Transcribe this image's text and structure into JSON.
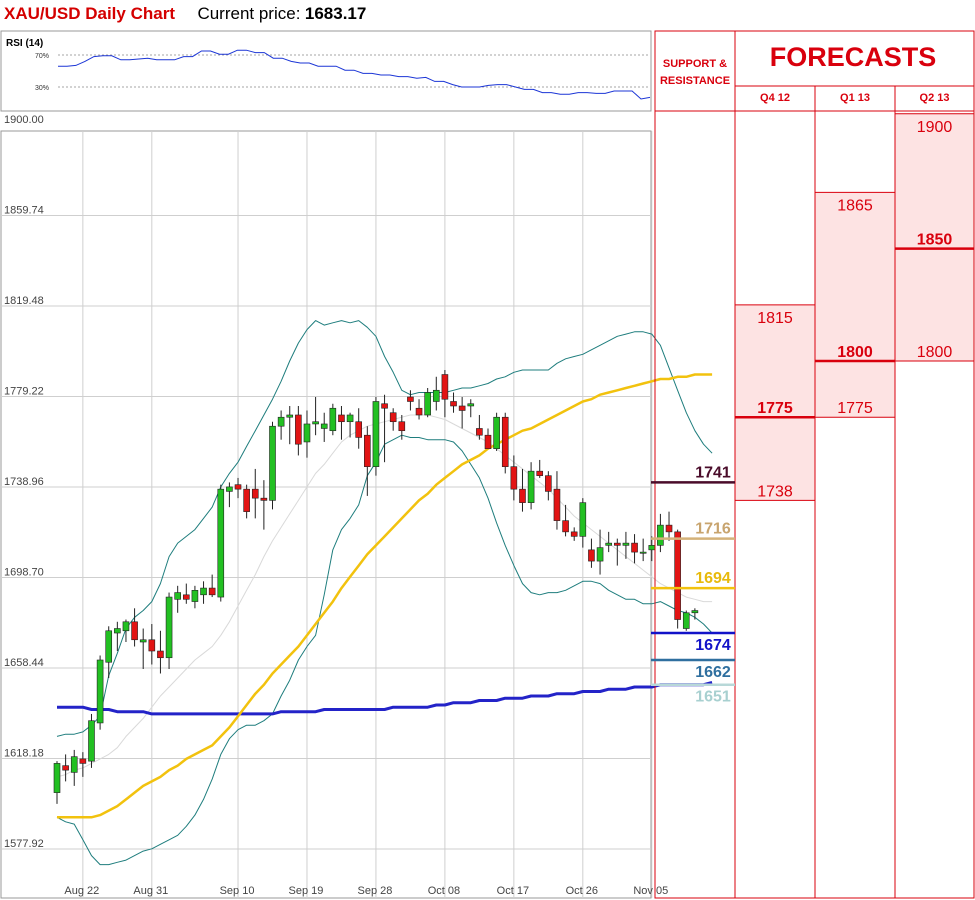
{
  "header": {
    "title": "XAU/USD Daily Chart",
    "current_price_label": "Current price:",
    "current_price_value": "1683.17"
  },
  "colors": {
    "red": "#d40000",
    "panel_red": "#d9000d",
    "fill_pink": "#fde3e3",
    "candle_up": "#22c022",
    "candle_down": "#e21414",
    "bollinger": "#1e7d7d",
    "ma_short": "#d9d9d9",
    "ma_mid": "#f2c20e",
    "ma_long": "#2323c8",
    "rsi_line": "#1b35d6"
  },
  "chart_data": [
    {
      "type": "line",
      "title": "RSI (14)",
      "ylim": [
        0,
        100
      ],
      "y_ticks": [
        "70%",
        "30%"
      ],
      "y_tick_values": [
        70,
        30
      ],
      "series": [
        {
          "values": [
            56,
            56,
            57,
            62,
            68,
            69,
            69,
            64,
            64,
            65,
            66,
            64,
            64,
            64,
            68,
            68,
            75,
            75,
            71,
            71,
            76,
            76,
            73,
            73,
            66,
            66,
            62,
            60,
            60,
            56,
            56,
            56,
            51,
            51,
            47,
            47,
            45,
            45,
            43,
            43,
            41,
            42,
            37,
            37,
            33,
            30,
            30,
            30,
            32,
            33,
            33,
            30,
            27,
            27,
            23,
            23,
            21,
            21,
            23,
            23,
            22,
            22,
            25,
            25,
            25,
            15,
            17
          ]
        }
      ]
    },
    {
      "type": "candlestick",
      "ylim": [
        1570,
        1900
      ],
      "y_ticks": [
        "1900.00",
        "1859.74",
        "1819.48",
        "1779.22",
        "1738.96",
        "1698.70",
        "1658.44",
        "1618.18",
        "1577.92"
      ],
      "y_tick_values": [
        1900.0,
        1859.74,
        1819.48,
        1779.22,
        1738.96,
        1698.7,
        1658.44,
        1618.18,
        1577.92
      ],
      "x_ticks": [
        "Aug 22",
        "Aug 31",
        "Sep 10",
        "Sep 19",
        "Sep 28",
        "Oct 08",
        "Oct 17",
        "Oct 26",
        "Nov 05"
      ],
      "x_tick_index": [
        3,
        11,
        21,
        29,
        37,
        45,
        53,
        61,
        69
      ],
      "candles": [
        [
          1603,
          1617,
          1598,
          1616
        ],
        [
          1615,
          1620,
          1608,
          1613
        ],
        [
          1612,
          1622,
          1606,
          1619
        ],
        [
          1618,
          1621,
          1610,
          1616
        ],
        [
          1617,
          1638,
          1614,
          1635
        ],
        [
          1634,
          1664,
          1631,
          1662
        ],
        [
          1661,
          1677,
          1654,
          1675
        ],
        [
          1674,
          1679,
          1666,
          1676
        ],
        [
          1675,
          1680,
          1670,
          1679
        ],
        [
          1679,
          1685,
          1668,
          1671
        ],
        [
          1670,
          1676,
          1658,
          1671
        ],
        [
          1671,
          1678,
          1660,
          1666
        ],
        [
          1666,
          1675,
          1656,
          1663
        ],
        [
          1663,
          1692,
          1658,
          1690
        ],
        [
          1689,
          1695,
          1683,
          1692
        ],
        [
          1691,
          1696,
          1687,
          1689
        ],
        [
          1688,
          1695,
          1685,
          1693
        ],
        [
          1691,
          1697,
          1687,
          1694
        ],
        [
          1694,
          1700,
          1690,
          1691
        ],
        [
          1690,
          1740,
          1688,
          1738
        ],
        [
          1737,
          1741,
          1730,
          1739
        ],
        [
          1740,
          1743,
          1734,
          1738
        ],
        [
          1738,
          1740,
          1725,
          1728
        ],
        [
          1738,
          1747,
          1725,
          1734
        ],
        [
          1734,
          1742,
          1720,
          1733
        ],
        [
          1733,
          1768,
          1729,
          1766
        ],
        [
          1766,
          1773,
          1760,
          1770
        ],
        [
          1770,
          1775,
          1758,
          1771
        ],
        [
          1771,
          1775,
          1753,
          1758
        ],
        [
          1759,
          1773,
          1752,
          1767
        ],
        [
          1767,
          1779,
          1762,
          1768
        ],
        [
          1765,
          1772,
          1759,
          1767
        ],
        [
          1764,
          1776,
          1762,
          1774
        ],
        [
          1771,
          1775,
          1760,
          1768
        ],
        [
          1768,
          1772,
          1761,
          1771
        ],
        [
          1768,
          1774,
          1756,
          1761
        ],
        [
          1762,
          1766,
          1735,
          1748
        ],
        [
          1748,
          1779,
          1744,
          1777
        ],
        [
          1776,
          1780,
          1750,
          1774
        ],
        [
          1772,
          1774,
          1764,
          1768
        ],
        [
          1768,
          1771,
          1760,
          1764
        ],
        [
          1779,
          1782,
          1773,
          1777
        ],
        [
          1774,
          1778,
          1769,
          1771
        ],
        [
          1771,
          1783,
          1770,
          1781
        ],
        [
          1777,
          1788,
          1773,
          1782
        ],
        [
          1789,
          1791,
          1770,
          1778
        ],
        [
          1777,
          1781,
          1772,
          1775
        ],
        [
          1775,
          1779,
          1765,
          1773
        ],
        [
          1775,
          1778,
          1770,
          1776
        ],
        [
          1765,
          1771,
          1760,
          1762
        ],
        [
          1762,
          1765,
          1756,
          1756
        ],
        [
          1756,
          1772,
          1755,
          1770
        ],
        [
          1770,
          1772,
          1745,
          1748
        ],
        [
          1748,
          1753,
          1733,
          1738
        ],
        [
          1738,
          1747,
          1728,
          1732
        ],
        [
          1732,
          1750,
          1729,
          1746
        ],
        [
          1746,
          1751,
          1743,
          1744
        ],
        [
          1744,
          1746,
          1733,
          1737
        ],
        [
          1738,
          1746,
          1720,
          1724
        ],
        [
          1724,
          1731,
          1717,
          1719
        ],
        [
          1719,
          1721,
          1715,
          1717
        ],
        [
          1717,
          1734,
          1712,
          1732
        ],
        [
          1711,
          1716,
          1703,
          1706
        ],
        [
          1706,
          1720,
          1700,
          1712
        ],
        [
          1713,
          1719,
          1710,
          1714
        ],
        [
          1714,
          1716,
          1704,
          1713
        ],
        [
          1713,
          1719,
          1707,
          1714
        ],
        [
          1714,
          1718,
          1705,
          1710
        ],
        [
          1710,
          1716,
          1706,
          1710
        ],
        [
          1711,
          1717,
          1706,
          1713
        ],
        [
          1713,
          1727,
          1710,
          1722
        ],
        [
          1722,
          1728,
          1715,
          1719
        ],
        [
          1719,
          1720,
          1676,
          1680
        ],
        [
          1676,
          1684,
          1675,
          1683
        ],
        [
          1683,
          1685,
          1680,
          1684
        ]
      ],
      "series": [
        {
          "kind": "bollinger-upper",
          "values": [
            1628,
            1629,
            1629,
            1630,
            1633,
            1637,
            1655,
            1665,
            1676,
            1681,
            1684,
            1688,
            1696,
            1708,
            1714,
            1717,
            1720,
            1725,
            1730,
            1739,
            1745,
            1750,
            1757,
            1764,
            1771,
            1778,
            1786,
            1795,
            1803,
            1809,
            1813,
            1811,
            1812,
            1813,
            1812,
            1813,
            1810,
            1806,
            1797,
            1790,
            1782,
            1780,
            1781,
            1781,
            1781,
            1781,
            1782,
            1783,
            1783,
            1784,
            1785,
            1787,
            1788,
            1790,
            1791,
            1791,
            1791,
            1791,
            1794,
            1796,
            1797,
            1798,
            1800,
            1802,
            1804,
            1806,
            1807,
            1808,
            1808,
            1807,
            1802,
            1792,
            1782,
            1772,
            1764,
            1758,
            1754
          ]
        },
        {
          "kind": "bollinger-lower",
          "values": [
            1592,
            1590,
            1589,
            1582,
            1575,
            1571,
            1571,
            1572,
            1573,
            1575,
            1577,
            1578,
            1580,
            1582,
            1584,
            1588,
            1593,
            1600,
            1609,
            1620,
            1627,
            1631,
            1633,
            1633,
            1635,
            1638,
            1646,
            1653,
            1662,
            1668,
            1673,
            1691,
            1711,
            1720,
            1725,
            1731,
            1744,
            1750,
            1758,
            1760,
            1762,
            1761,
            1761,
            1760,
            1760,
            1760,
            1759,
            1755,
            1749,
            1743,
            1734,
            1723,
            1713,
            1704,
            1696,
            1692,
            1691,
            1692,
            1692,
            1693,
            1695,
            1697,
            1697,
            1696,
            1693,
            1691,
            1689,
            1689,
            1687,
            1687,
            1688,
            1686,
            1684,
            1683,
            1681,
            1678,
            1674
          ]
        },
        {
          "kind": "ma-short",
          "values": [
            1610,
            1611,
            1613,
            1614,
            1616,
            1618,
            1620,
            1623,
            1628,
            1632,
            1636,
            1641,
            1646,
            1650,
            1654,
            1658,
            1662,
            1665,
            1668,
            1673,
            1679,
            1686,
            1693,
            1700,
            1708,
            1715,
            1721,
            1727,
            1733,
            1739,
            1745,
            1749,
            1754,
            1759,
            1762,
            1764,
            1766,
            1767,
            1768,
            1769,
            1770,
            1771,
            1771,
            1771,
            1770,
            1769,
            1767,
            1765,
            1763,
            1761,
            1759,
            1756,
            1753,
            1750,
            1747,
            1744,
            1741,
            1738,
            1734,
            1730,
            1726,
            1723,
            1720,
            1717,
            1714,
            1711,
            1708,
            1705,
            1702,
            1699,
            1696,
            1694,
            1692,
            1690,
            1689,
            1688,
            1688
          ]
        },
        {
          "kind": "ma-mid",
          "values": [
            1592,
            1592,
            1592,
            1592,
            1592,
            1593,
            1595,
            1597,
            1600,
            1603,
            1606,
            1608,
            1610,
            1613,
            1615,
            1618,
            1620,
            1622,
            1624,
            1628,
            1632,
            1637,
            1642,
            1647,
            1651,
            1656,
            1660,
            1664,
            1668,
            1673,
            1678,
            1683,
            1688,
            1694,
            1699,
            1704,
            1709,
            1713,
            1717,
            1721,
            1725,
            1729,
            1733,
            1736,
            1740,
            1743,
            1746,
            1749,
            1751,
            1753,
            1756,
            1758,
            1760,
            1762,
            1764,
            1765,
            1767,
            1769,
            1771,
            1773,
            1775,
            1777,
            1778,
            1780,
            1781,
            1782,
            1783,
            1784,
            1785,
            1786,
            1787,
            1787,
            1788,
            1788,
            1789,
            1789,
            1789
          ]
        },
        {
          "kind": "ma-long",
          "values": [
            1641,
            1641,
            1641,
            1641,
            1640,
            1640,
            1640,
            1639,
            1639,
            1639,
            1639,
            1638,
            1638,
            1638,
            1638,
            1638,
            1638,
            1638,
            1638,
            1638,
            1638,
            1638,
            1638,
            1638,
            1638,
            1638,
            1639,
            1639,
            1639,
            1639,
            1639,
            1640,
            1640,
            1640,
            1640,
            1640,
            1640,
            1640,
            1640,
            1641,
            1641,
            1641,
            1641,
            1641,
            1642,
            1642,
            1643,
            1643,
            1643,
            1644,
            1644,
            1644,
            1645,
            1645,
            1645,
            1646,
            1646,
            1646,
            1647,
            1647,
            1647,
            1648,
            1648,
            1648,
            1649,
            1649,
            1649,
            1650,
            1650,
            1650,
            1651,
            1651,
            1651,
            1651,
            1651,
            1651,
            1652
          ]
        }
      ]
    },
    {
      "type": "table",
      "title": "FORECASTS",
      "support_header": "SUPPORT & RESISTANCE",
      "support_levels": [
        {
          "value": "1741",
          "color": "#4a0c2a",
          "label_color": "#4a0c2a",
          "weight": "bold",
          "level": 1741
        },
        {
          "value": "1716",
          "color": "#d4b27a",
          "label_color": "#c8a46e",
          "weight": "bold",
          "level": 1716
        },
        {
          "value": "1694",
          "color": "#f2c20e",
          "label_color": "#e8ba0c",
          "weight": "bold",
          "level": 1694
        },
        {
          "value": "1674",
          "color": "#1212c8",
          "label_color": "#1212c8",
          "weight": "bold",
          "level": 1674
        },
        {
          "value": "1662",
          "color": "#2f6f9f",
          "label_color": "#2f6f9f",
          "weight": "bold",
          "level": 1662
        },
        {
          "value": "1651",
          "color": "#b8d8d8",
          "label_color": "#a8d0d0",
          "weight": "bold",
          "level": 1651
        }
      ],
      "columns": [
        {
          "label": "Q4 12",
          "high": 1815,
          "mid": 1775,
          "low": 1738,
          "high_label": "1815",
          "mid_label": "1775",
          "low_label": "1738"
        },
        {
          "label": "Q1 13",
          "high": 1865,
          "mid": 1800,
          "low": 1775,
          "high_label": "1865",
          "mid_label": "1800",
          "low_label": "1775"
        },
        {
          "label": "Q2 13",
          "high": 1900,
          "mid": 1850,
          "low": 1800,
          "high_label": "1900",
          "mid_label": "1850",
          "low_label": "1800"
        }
      ]
    }
  ]
}
